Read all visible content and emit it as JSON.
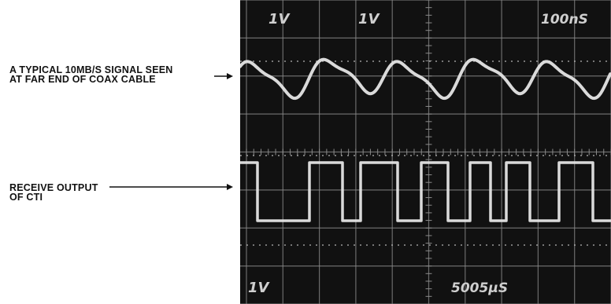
{
  "annotations": {
    "signal_label": {
      "lines": [
        "A TYPICAL 10MB/S SIGNAL SEEN",
        "AT FAR END OF COAX CABLE"
      ]
    },
    "output_label": {
      "lines": [
        "RECEIVE OUTPUT",
        "OF CTI"
      ]
    }
  },
  "oscilloscope": {
    "ch1_scale": "1V",
    "ch2_scale": "1V",
    "timebase": "100nS",
    "bottom_scale": "1V",
    "bottom_readout": "5005μS",
    "colors": {
      "screen": "#111111",
      "grid": "#8a8a8a",
      "trace": "#e6e6e6"
    }
  }
}
